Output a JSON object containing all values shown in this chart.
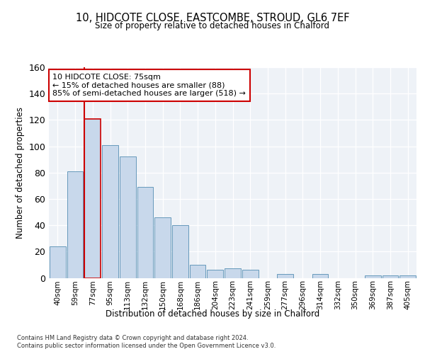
{
  "title1": "10, HIDCOTE CLOSE, EASTCOMBE, STROUD, GL6 7EF",
  "title2": "Size of property relative to detached houses in Chalford",
  "xlabel": "Distribution of detached houses by size in Chalford",
  "ylabel": "Number of detached properties",
  "bins": [
    "40sqm",
    "59sqm",
    "77sqm",
    "95sqm",
    "113sqm",
    "132sqm",
    "150sqm",
    "168sqm",
    "186sqm",
    "204sqm",
    "223sqm",
    "241sqm",
    "259sqm",
    "277sqm",
    "296sqm",
    "314sqm",
    "332sqm",
    "350sqm",
    "369sqm",
    "387sqm",
    "405sqm"
  ],
  "values": [
    24,
    81,
    121,
    101,
    92,
    69,
    46,
    40,
    10,
    6,
    7,
    6,
    0,
    3,
    0,
    3,
    0,
    0,
    2,
    2,
    2
  ],
  "bar_color": "#c8d8eb",
  "bar_edge_color": "#6699bb",
  "highlight_bar_index": 2,
  "highlight_edge_color": "#cc0000",
  "vline_color": "#cc0000",
  "annotation_title": "10 HIDCOTE CLOSE: 75sqm",
  "annotation_line1": "← 15% of detached houses are smaller (88)",
  "annotation_line2": "85% of semi-detached houses are larger (518) →",
  "annotation_box_color": "#ffffff",
  "annotation_box_edge": "#cc0000",
  "ylim": [
    0,
    160
  ],
  "yticks": [
    0,
    20,
    40,
    60,
    80,
    100,
    120,
    140,
    160
  ],
  "footer1": "Contains HM Land Registry data © Crown copyright and database right 2024.",
  "footer2": "Contains public sector information licensed under the Open Government Licence v3.0.",
  "bg_color": "#eef2f7"
}
